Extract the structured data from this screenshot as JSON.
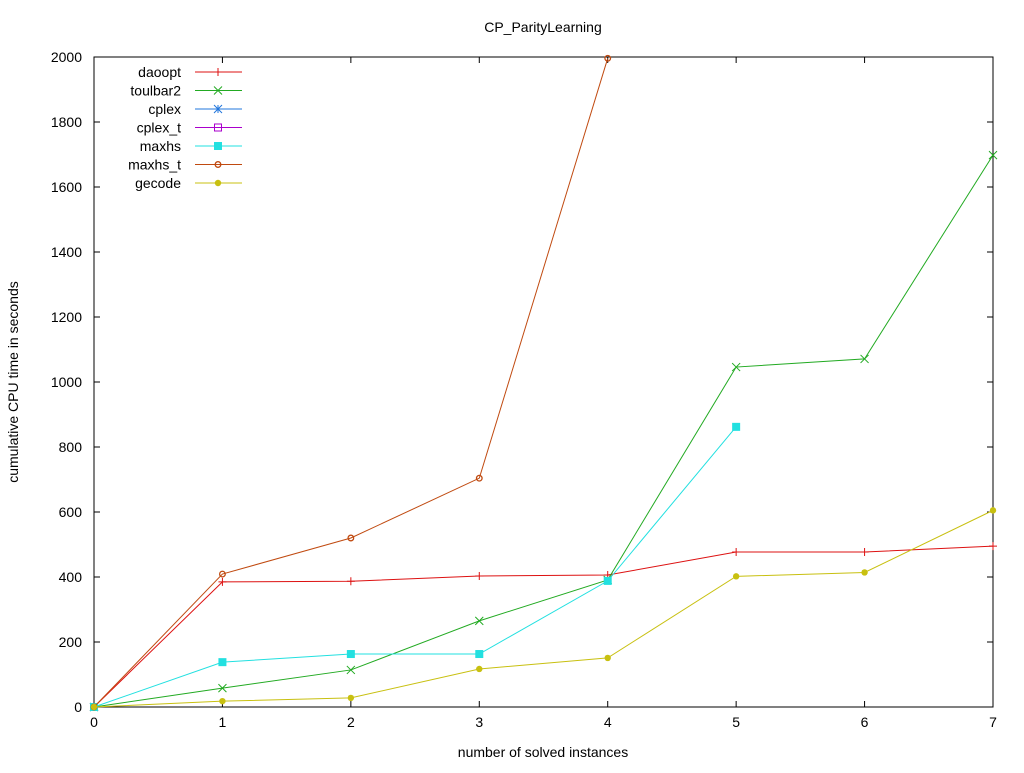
{
  "chart_data": {
    "type": "line",
    "title": "CP_ParityLearning",
    "xlabel": "number of solved instances",
    "ylabel": "cumulative CPU time in seconds",
    "xlim": [
      0,
      7
    ],
    "ylim": [
      0,
      2000
    ],
    "xticks": [
      0,
      1,
      2,
      3,
      4,
      5,
      6,
      7
    ],
    "yticks": [
      0,
      200,
      400,
      600,
      800,
      1000,
      1200,
      1400,
      1600,
      1800,
      2000
    ],
    "grid": false,
    "legend": "top-left",
    "series": [
      {
        "name": "daoopt",
        "color": "#dd1111",
        "marker": "plus",
        "x": [
          0,
          1,
          2,
          3,
          4,
          5,
          6,
          7
        ],
        "y": [
          0,
          385,
          387,
          403,
          406,
          477,
          477,
          495
        ]
      },
      {
        "name": "toulbar2",
        "color": "#22aa22",
        "marker": "cross",
        "x": [
          0,
          1,
          2,
          3,
          4,
          5,
          6,
          7
        ],
        "y": [
          0,
          58,
          114,
          265,
          391,
          1046,
          1071,
          1698
        ]
      },
      {
        "name": "cplex",
        "color": "#2277dd",
        "marker": "star",
        "x": [
          0
        ],
        "y": [
          0
        ]
      },
      {
        "name": "cplex_t",
        "color": "#aa00cc",
        "marker": "open-square",
        "x": [
          0
        ],
        "y": [
          0
        ]
      },
      {
        "name": "maxhs",
        "color": "#22e0e0",
        "marker": "filled-square",
        "x": [
          0,
          1,
          2,
          3,
          4,
          5
        ],
        "y": [
          0,
          138,
          163,
          163,
          388,
          862
        ]
      },
      {
        "name": "maxhs_t",
        "color": "#c04a10",
        "marker": "open-circle",
        "x": [
          0,
          1,
          2,
          3,
          4
        ],
        "y": [
          0,
          409,
          520,
          704,
          1996
        ]
      },
      {
        "name": "gecode",
        "color": "#c8c010",
        "marker": "filled-pentagon",
        "x": [
          0,
          1,
          2,
          3,
          4,
          5,
          6,
          7
        ],
        "y": [
          0,
          18,
          28,
          117,
          151,
          402,
          414,
          605
        ]
      }
    ]
  }
}
